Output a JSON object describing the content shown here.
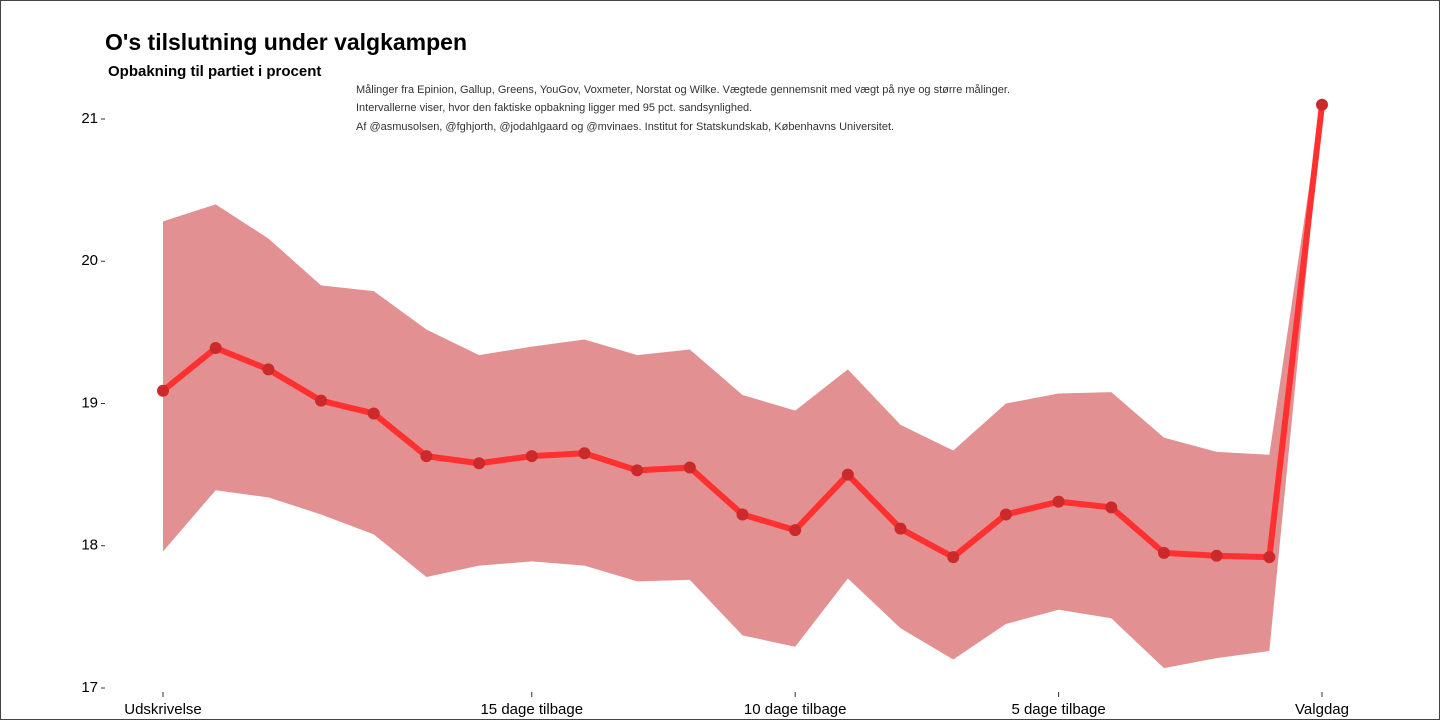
{
  "chart_data": {
    "type": "line",
    "title": "O's tilslutning under valgkampen",
    "subtitle": "Opbakning til partiet i procent",
    "annotations": [
      "Målinger fra Epinion, Gallup, Greens, YouGov, Voxmeter, Norstat og Wilke. Vægtede gennemsnit med vægt på nye og større målinger.",
      "Intervallerne viser, hvor den faktiske opbakning ligger med 95 pct. sandsynlighed.",
      "Af @asmusolsen, @fghjorth, @jodahlgaard og @mvinaes. Institut for Statskundskab, Københavns Universitet."
    ],
    "categories": [
      "Udskrivelse",
      null,
      null,
      null,
      null,
      null,
      null,
      "15 dage tilbage",
      null,
      null,
      null,
      null,
      "10 dage tilbage",
      null,
      null,
      null,
      null,
      "5 dage tilbage",
      null,
      null,
      null,
      null,
      "Valgdag"
    ],
    "values": [
      19.09,
      19.39,
      19.24,
      19.02,
      18.93,
      18.63,
      18.58,
      18.63,
      18.65,
      18.53,
      18.55,
      18.22,
      18.11,
      18.5,
      18.12,
      17.92,
      18.22,
      18.31,
      18.27,
      17.95,
      17.93,
      17.92,
      21.1
    ],
    "upper": [
      20.28,
      20.4,
      20.16,
      19.83,
      19.79,
      19.52,
      19.34,
      19.4,
      19.45,
      19.34,
      19.38,
      19.06,
      18.95,
      19.24,
      18.85,
      18.67,
      19.0,
      19.07,
      19.08,
      18.76,
      18.66,
      18.64,
      21.13
    ],
    "lower": [
      17.96,
      18.39,
      18.34,
      18.22,
      18.08,
      17.78,
      17.86,
      17.89,
      17.86,
      17.75,
      17.76,
      17.37,
      17.29,
      17.77,
      17.42,
      17.2,
      17.45,
      17.55,
      17.49,
      17.14,
      17.21,
      17.26,
      21.05
    ],
    "color": "#ff3030",
    "point_color": "#cc2a2a",
    "band_color": "#e39092",
    "ylim": [
      17,
      21.15
    ],
    "yticks": [
      17,
      18,
      19,
      20,
      21
    ]
  }
}
